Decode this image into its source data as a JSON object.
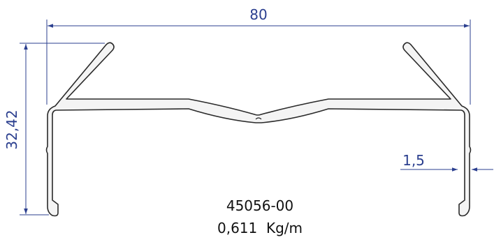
{
  "drawing": {
    "dimension_width": "80",
    "dimension_height": "32,42",
    "dimension_thickness": "1,5",
    "part_number": "45056-00",
    "weight": "0,611  Kg/m"
  },
  "colors": {
    "dimension": "#2b3f8f",
    "outline": "#2a2a2a",
    "profile_fill": "#f4f4f4",
    "text": "#111111"
  }
}
